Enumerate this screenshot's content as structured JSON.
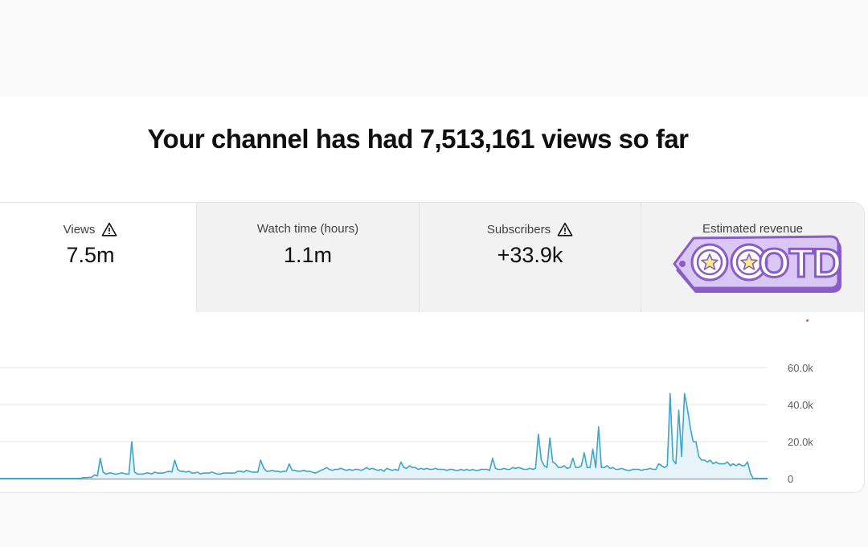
{
  "headline": "Your channel has had 7,513,161 views so far",
  "tabs": [
    {
      "label": "Views",
      "value": "7.5m",
      "icon": "warning-icon"
    },
    {
      "label": "Watch time (hours)",
      "value": "1.1m",
      "icon": ""
    },
    {
      "label": "Subscribers",
      "value": "+33.9k",
      "icon": "warning-icon"
    },
    {
      "label": "Estimated revenue",
      "value": "",
      "icon": ""
    }
  ],
  "sticker": {
    "text": "OTD",
    "colors": {
      "fill": "#d9c8f5",
      "outline": "#8a5cc7",
      "star": "#fbe98a"
    }
  },
  "colors": {
    "line": "#3ea6c8",
    "area": "#e6f4f9",
    "grid": "#e5e5e5"
  },
  "chart_data": {
    "type": "line",
    "ylim": [
      0,
      60000
    ],
    "y_ticks": [
      {
        "value": 0,
        "label": "0"
      },
      {
        "value": 20000,
        "label": "20.0k"
      },
      {
        "value": 40000,
        "label": "40.0k"
      },
      {
        "value": 60000,
        "label": "60.0k"
      }
    ],
    "grid": true,
    "series": [
      {
        "values": [
          0,
          0,
          0,
          0,
          0,
          0,
          0,
          0,
          0,
          0,
          0,
          0,
          0,
          0,
          0,
          0,
          0,
          0,
          0,
          0,
          0,
          0,
          0,
          0,
          0,
          0,
          0,
          0,
          0,
          500,
          500,
          700,
          700,
          2000,
          1500,
          11000,
          3500,
          2500,
          3000,
          3000,
          2500,
          2500,
          3000,
          3000,
          2500,
          2500,
          20000,
          3500,
          2500,
          2500,
          2500,
          3000,
          3000,
          2500,
          3500,
          3000,
          3000,
          3000,
          3500,
          4000,
          3500,
          10000,
          5000,
          4000,
          4000,
          3500,
          4000,
          3000,
          3000,
          3500,
          2500,
          3000,
          3000,
          3000,
          3500,
          3000,
          2500,
          2500,
          3000,
          3000,
          3000,
          3000,
          3000,
          4000,
          4000,
          3500,
          4500,
          4000,
          3500,
          3500,
          3500,
          10000,
          6000,
          4000,
          4000,
          4500,
          4000,
          4000,
          3500,
          4000,
          4000,
          8000,
          4500,
          4500,
          4000,
          4000,
          4500,
          4000,
          4000,
          3500,
          3000,
          3500,
          4500,
          5000,
          6000,
          5000,
          4500,
          5000,
          5000,
          5500,
          5000,
          4500,
          5000,
          4500,
          5000,
          5000,
          4500,
          5000,
          6000,
          5000,
          5500,
          5000,
          4500,
          5000,
          4000,
          5500,
          5000,
          4500,
          5000,
          4500,
          9000,
          6000,
          5500,
          7000,
          6000,
          6000,
          5000,
          5500,
          5000,
          5500,
          5000,
          5000,
          5500,
          5000,
          5000,
          5000,
          4500,
          5000,
          5000,
          4500,
          4500,
          5000,
          4500,
          5000,
          4500,
          5000,
          4500,
          4500,
          5000,
          5000,
          5000,
          4500,
          11000,
          5500,
          5000,
          5000,
          5500,
          5000,
          5000,
          6000,
          5500,
          6000,
          5500,
          5000,
          5000,
          5500,
          5000,
          5500,
          24000,
          10000,
          7000,
          6000,
          22000,
          9000,
          8000,
          6000,
          6000,
          7000,
          5500,
          6000,
          11000,
          6000,
          6000,
          7000,
          14000,
          6000,
          6000,
          16000,
          6000,
          28000,
          6000,
          6000,
          7000,
          5500,
          6000,
          5000,
          5000,
          5500,
          5000,
          4500,
          4500,
          5000,
          5000,
          5000,
          4500,
          5000,
          5000,
          5500,
          5000,
          5000,
          8000,
          7000,
          6000,
          7000,
          46000,
          10000,
          8000,
          37000,
          12000,
          46000,
          38000,
          28000,
          20000,
          20000,
          12000,
          10000,
          10000,
          9000,
          10000,
          8000,
          9000,
          8000,
          8000,
          8000,
          9000,
          7000,
          8000,
          7000,
          8000,
          7000,
          7000,
          9000,
          3000,
          0,
          0,
          0,
          0,
          0,
          0
        ]
      }
    ]
  }
}
